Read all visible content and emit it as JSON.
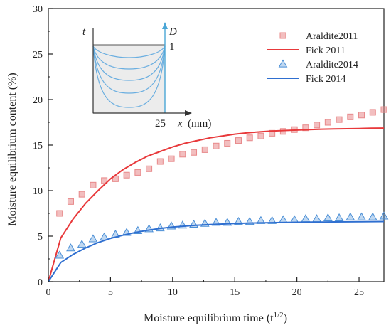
{
  "chart_data": {
    "type": "scatter",
    "xlabel": "Moisture equilibrium time (t",
    "xlabel_sup": "1/2",
    "xlabel_tail": ")",
    "ylabel": "Moisture equilibrium content (%)",
    "xlim": [
      0,
      27
    ],
    "ylim": [
      0,
      30
    ],
    "x_ticks": [
      0,
      5,
      10,
      15,
      20,
      25
    ],
    "y_ticks": [
      0,
      5,
      10,
      15,
      20,
      25,
      30
    ],
    "x_tick_labels": [
      "0",
      "5",
      "10",
      "15",
      "20",
      "25"
    ],
    "y_tick_labels": [
      "0",
      "5",
      "10",
      "15",
      "20",
      "25",
      "30"
    ],
    "legend_position": "top-right",
    "series": [
      {
        "name": "Araldite2011",
        "kind": "markers",
        "marker": "square",
        "color": "#e8898a",
        "x": [
          0.9,
          1.8,
          2.7,
          3.6,
          4.5,
          5.4,
          6.3,
          7.2,
          8.1,
          9.0,
          9.9,
          10.8,
          11.7,
          12.6,
          13.5,
          14.4,
          15.3,
          16.2,
          17.1,
          18.0,
          18.9,
          19.8,
          20.7,
          21.6,
          22.5,
          23.4,
          24.3,
          25.2,
          26.1,
          27.0
        ],
        "y": [
          7.5,
          8.8,
          9.6,
          10.6,
          11.1,
          11.3,
          11.7,
          12.0,
          12.4,
          13.2,
          13.5,
          14.0,
          14.2,
          14.5,
          14.9,
          15.2,
          15.5,
          15.8,
          16.0,
          16.3,
          16.5,
          16.7,
          16.9,
          17.2,
          17.5,
          17.8,
          18.1,
          18.3,
          18.6,
          18.9
        ]
      },
      {
        "name": "Fick 2011",
        "kind": "line",
        "color": "#e8393b",
        "x": [
          0,
          1,
          2,
          3,
          4,
          5,
          6,
          7,
          8,
          9,
          10,
          11,
          12,
          13,
          14,
          15,
          16,
          17,
          18,
          19,
          20,
          21,
          22,
          23,
          24,
          25,
          26,
          27
        ],
        "y": [
          0,
          4.8,
          6.9,
          8.6,
          10.0,
          11.3,
          12.3,
          13.1,
          13.8,
          14.3,
          14.8,
          15.2,
          15.5,
          15.8,
          16.0,
          16.2,
          16.35,
          16.45,
          16.55,
          16.6,
          16.65,
          16.7,
          16.75,
          16.78,
          16.8,
          16.82,
          16.85,
          16.87
        ]
      },
      {
        "name": "Araldite2014",
        "kind": "markers",
        "marker": "triangle",
        "color": "#4b8fd6",
        "x": [
          0.9,
          1.8,
          2.7,
          3.6,
          4.5,
          5.4,
          6.3,
          7.2,
          8.1,
          9.0,
          9.9,
          10.8,
          11.7,
          12.6,
          13.5,
          14.4,
          15.3,
          16.2,
          17.1,
          18.0,
          18.9,
          19.8,
          20.7,
          21.6,
          22.5,
          23.4,
          24.3,
          25.2,
          26.1,
          27.0
        ],
        "y": [
          2.9,
          3.7,
          4.1,
          4.7,
          4.9,
          5.2,
          5.4,
          5.6,
          5.8,
          5.9,
          6.1,
          6.2,
          6.3,
          6.4,
          6.5,
          6.5,
          6.6,
          6.6,
          6.7,
          6.7,
          6.8,
          6.8,
          6.9,
          6.9,
          7.0,
          7.0,
          7.1,
          7.1,
          7.1,
          7.2
        ]
      },
      {
        "name": "Fick 2014",
        "kind": "line",
        "color": "#2f6fd0",
        "x": [
          0,
          1,
          2,
          3,
          4,
          5,
          6,
          7,
          8,
          9,
          10,
          11,
          12,
          13,
          14,
          15,
          16,
          17,
          18,
          19,
          20,
          21,
          22,
          23,
          24,
          25,
          26,
          27
        ],
        "y": [
          0,
          2.1,
          3.0,
          3.7,
          4.3,
          4.75,
          5.1,
          5.4,
          5.65,
          5.85,
          6.0,
          6.1,
          6.2,
          6.27,
          6.33,
          6.38,
          6.42,
          6.45,
          6.48,
          6.5,
          6.52,
          6.54,
          6.55,
          6.56,
          6.57,
          6.58,
          6.59,
          6.6
        ]
      }
    ],
    "inset": {
      "t_label": "t",
      "d_label": "D",
      "one_label": "1",
      "x_label": "x",
      "x_unit": "(mm)",
      "x_end_label": "25",
      "profile_count": 5
    }
  }
}
